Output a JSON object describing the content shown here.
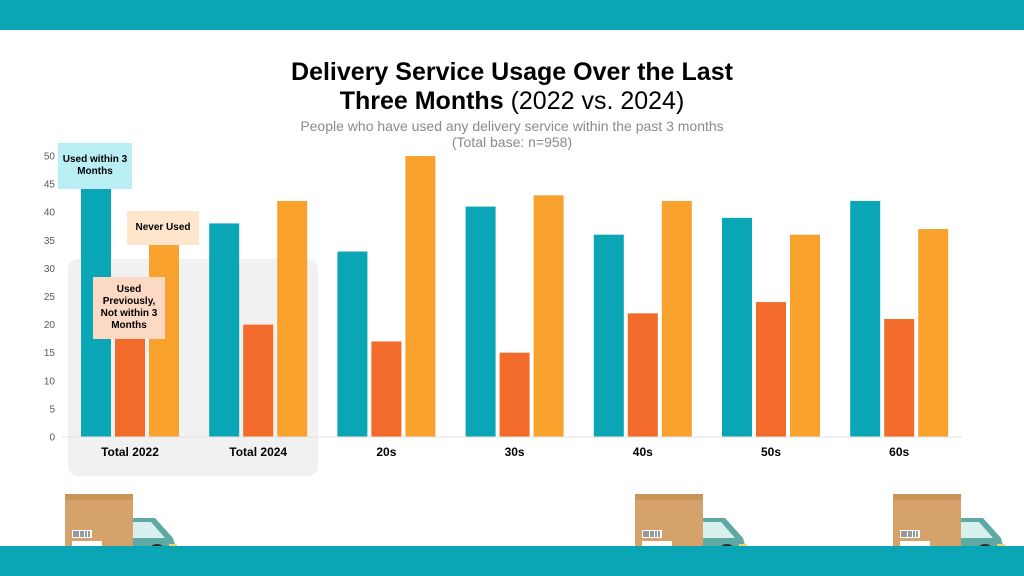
{
  "title": {
    "bold_line1": "Delivery Service Usage Over the Last",
    "bold_line2": "Three Months",
    "light_part": "(2022 vs. 2024)"
  },
  "subtitle": {
    "line1": "People who have used any delivery service within the past 3 months",
    "line2": "(Total base: n=958)"
  },
  "callouts": {
    "used": "Used within 3 Months",
    "never": "Never Used",
    "previously": "Used Previously, Not within 3 Months"
  },
  "colors": {
    "used": "#0aa6b5",
    "previously": "#f26b2a",
    "never": "#f8a12c",
    "band": "#0aa6b5",
    "highlight": "#f2f1f1"
  },
  "chart_data": {
    "type": "bar",
    "title": "Delivery Service Usage Over the Last Three Months (2022 vs. 2024)",
    "subtitle": "People who have used any delivery service within the past 3 months (Total base: n=958)",
    "categories": [
      "Total 2022",
      "Total 2024",
      "20s",
      "30s",
      "40s",
      "50s",
      "60s"
    ],
    "series": [
      {
        "name": "Used within 3 Months",
        "color": "#0aa6b5",
        "values": [
          45,
          38,
          33,
          41,
          36,
          39,
          42
        ]
      },
      {
        "name": "Used Previously, Not within 3 Months",
        "color": "#f26b2a",
        "values": [
          18,
          20,
          17,
          15,
          22,
          24,
          21
        ]
      },
      {
        "name": "Never Used",
        "color": "#f8a12c",
        "values": [
          35,
          42,
          50,
          43,
          42,
          36,
          37
        ]
      }
    ],
    "yticks": [
      0,
      5,
      10,
      15,
      20,
      25,
      30,
      35,
      40,
      45,
      50
    ],
    "ylim": [
      0,
      50
    ],
    "xlabel": "",
    "ylabel": ""
  }
}
